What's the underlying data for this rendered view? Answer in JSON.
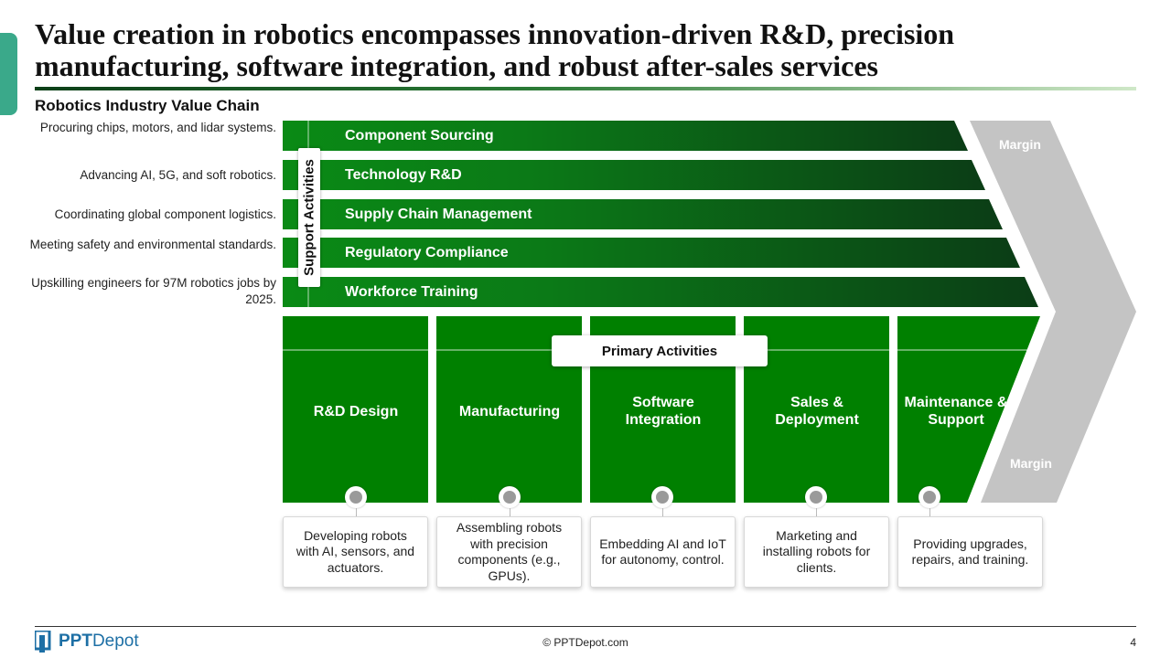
{
  "header": {
    "title": "Value creation in robotics encompasses innovation-driven R&D, precision manufacturing, software integration, and robust after-sales services",
    "subtitle": "Robotics Industry Value Chain"
  },
  "support": {
    "label": "Support Activities",
    "items": [
      {
        "label": "Component Sourcing",
        "description": "Procuring chips, motors, and lidar systems."
      },
      {
        "label": "Technology R&D",
        "description": "Advancing AI, 5G, and soft robotics."
      },
      {
        "label": "Supply Chain Management",
        "description": "Coordinating global component logistics."
      },
      {
        "label": "Regulatory Compliance",
        "description": "Meeting safety and environmental standards."
      },
      {
        "label": "Workforce Training",
        "description": "Upskilling engineers for 97M robotics jobs by 2025."
      }
    ]
  },
  "primary": {
    "label": "Primary Activities",
    "items": [
      {
        "label": "R&D Design",
        "description": "Developing robots with AI, sensors, and actuators."
      },
      {
        "label": "Manufacturing",
        "description": "Assembling robots with precision components (e.g., GPUs)."
      },
      {
        "label": "Software Integration",
        "description": "Embedding AI and IoT for autonomy, control."
      },
      {
        "label": "Sales & Deployment",
        "description": "Marketing and installing robots for clients."
      },
      {
        "label": "Maintenance & Support",
        "description": "Providing upgrades, repairs, and training."
      }
    ]
  },
  "margin": {
    "top_label": "Margin",
    "bottom_label": "Margin"
  },
  "colors": {
    "primary_green": "#008000",
    "dark_green": "#0c3f18",
    "margin_gray": "#c4c4c4",
    "accent_teal": "#3aa98a"
  },
  "footer": {
    "brand": "PPTDepot",
    "brand_bold": "PPT",
    "brand_rest": "Depot",
    "copyright": "© PPTDepot.com",
    "page_number": "4"
  }
}
